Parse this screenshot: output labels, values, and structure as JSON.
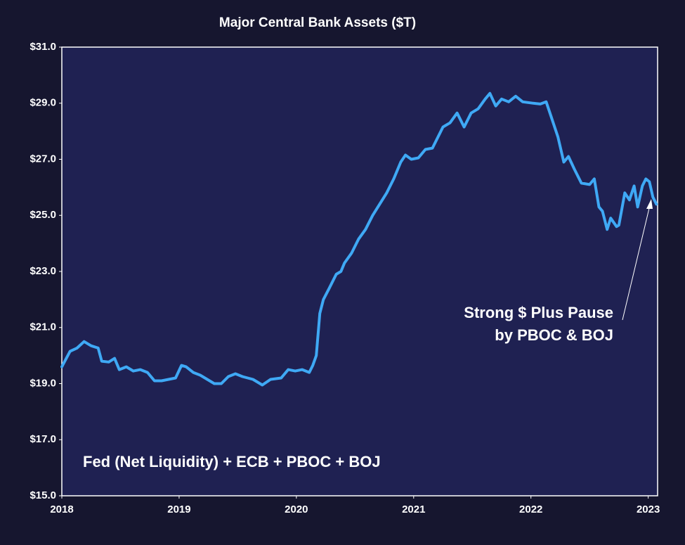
{
  "chart_data": {
    "type": "line",
    "title": "Major Central Bank Assets ($T)",
    "annotations": [
      "Fed (Net Liquidity) + ECB + PBOC + BOJ"
    ],
    "callout": [
      "Strong $ Plus Pause",
      "by PBOC & BOJ"
    ],
    "x": [
      2018,
      2018.07,
      2018.13,
      2018.19,
      2018.25,
      2018.31,
      2018.34,
      2018.4,
      2018.45,
      2018.49,
      2018.55,
      2018.61,
      2018.67,
      2018.73,
      2018.79,
      2018.85,
      2018.91,
      2018.97,
      2019.02,
      2019.06,
      2019.12,
      2019.18,
      2019.24,
      2019.3,
      2019.36,
      2019.42,
      2019.48,
      2019.54,
      2019.63,
      2019.71,
      2019.78,
      2019.87,
      2019.93,
      2019.99,
      2020.05,
      2020.11,
      2020.14,
      2020.17,
      2020.2,
      2020.23,
      2020.28,
      2020.34,
      2020.38,
      2020.41,
      2020.47,
      2020.53,
      2020.59,
      2020.65,
      2020.71,
      2020.77,
      2020.83,
      2020.89,
      2020.93,
      2020.98,
      2021.04,
      2021.1,
      2021.16,
      2021.22,
      2021.25,
      2021.31,
      2021.37,
      2021.43,
      2021.49,
      2021.55,
      2021.61,
      2021.65,
      2021.7,
      2021.75,
      2021.81,
      2021.87,
      2021.93,
      2022.02,
      2022.08,
      2022.13,
      2022.17,
      2022.23,
      2022.28,
      2022.32,
      2022.37,
      2022.43,
      2022.5,
      2022.54,
      2022.58,
      2022.61,
      2022.65,
      2022.68,
      2022.73,
      2022.75,
      2022.8,
      2022.84,
      2022.88,
      2022.91,
      2022.95,
      2022.98,
      2023.01,
      2023.04,
      2023.07
    ],
    "series": [
      {
        "name": "Major Central Bank Assets",
        "color": "#3fa9f5",
        "values": [
          19.6,
          20.15,
          20.27,
          20.5,
          20.35,
          20.27,
          19.8,
          19.77,
          19.9,
          19.5,
          19.6,
          19.45,
          19.5,
          19.4,
          19.1,
          19.1,
          19.15,
          19.2,
          19.65,
          19.6,
          19.4,
          19.3,
          19.15,
          19.0,
          19.0,
          19.25,
          19.35,
          19.25,
          19.15,
          18.95,
          19.15,
          19.2,
          19.5,
          19.45,
          19.5,
          19.4,
          19.65,
          20.0,
          21.5,
          22.0,
          22.4,
          22.9,
          23.0,
          23.3,
          23.65,
          24.15,
          24.5,
          25.0,
          25.4,
          25.8,
          26.3,
          26.9,
          27.15,
          27.0,
          27.05,
          27.35,
          27.4,
          27.9,
          28.15,
          28.3,
          28.65,
          28.15,
          28.65,
          28.8,
          29.15,
          29.35,
          28.9,
          29.15,
          29.05,
          29.25,
          29.05,
          29.0,
          28.97,
          29.05,
          28.55,
          27.8,
          26.9,
          27.1,
          26.65,
          26.15,
          26.1,
          26.3,
          25.3,
          25.15,
          24.5,
          24.9,
          24.6,
          24.65,
          25.8,
          25.55,
          26.05,
          25.3,
          26.05,
          26.3,
          26.2,
          25.65,
          25.4
        ]
      }
    ],
    "xlim": [
      2018,
      2023.08
    ],
    "xticks": [
      2018,
      2019,
      2020,
      2021,
      2022,
      2023
    ],
    "ylim": [
      15,
      31
    ],
    "yticks": [
      {
        "value": 15,
        "label": "$15.0"
      },
      {
        "value": 17,
        "label": "$17.0"
      },
      {
        "value": 19,
        "label": "$19.0"
      },
      {
        "value": 21,
        "label": "$21.0"
      },
      {
        "value": 23,
        "label": "$23.0"
      },
      {
        "value": 25,
        "label": "$25.0"
      },
      {
        "value": 27,
        "label": "$27.0"
      },
      {
        "value": 29,
        "label": "$29.0"
      },
      {
        "value": 31,
        "label": "$31.0"
      }
    ],
    "grid": false
  }
}
